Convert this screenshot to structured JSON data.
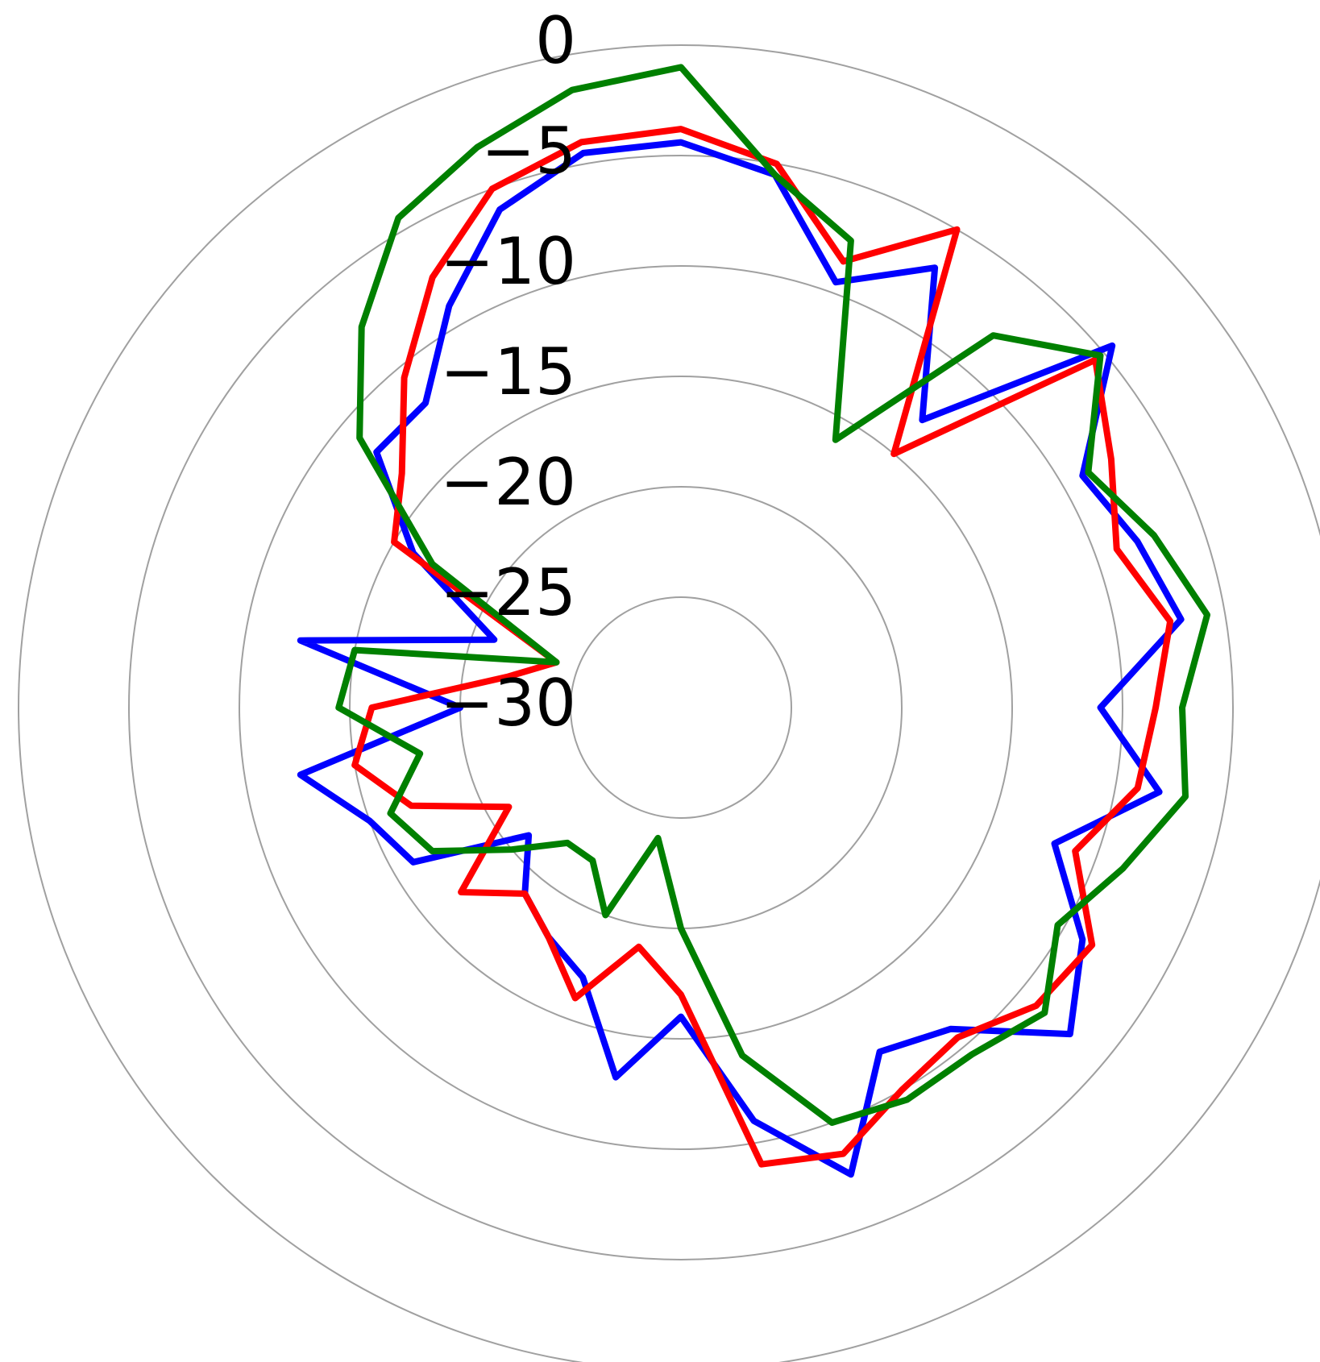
{
  "chart_data": {
    "type": "polar",
    "x": [
      0,
      10,
      20,
      30,
      40,
      50,
      60,
      70,
      80,
      90,
      100,
      110,
      120,
      130,
      140,
      150,
      160,
      170,
      180,
      190,
      200,
      210,
      220,
      230,
      240,
      250,
      260,
      270,
      280,
      290,
      300,
      310,
      320,
      330,
      340,
      350
    ],
    "ylim": [
      -30,
      0
    ],
    "yticks": [
      {
        "value": -30,
        "label": "−30"
      },
      {
        "value": -25,
        "label": "−25"
      },
      {
        "value": -20,
        "label": "−20"
      },
      {
        "value": -15,
        "label": "−15"
      },
      {
        "value": -10,
        "label": "−10"
      },
      {
        "value": -5,
        "label": "−5"
      },
      0
    ],
    "grid": true,
    "series": [
      {
        "color": "#0000ff",
        "values": [
          -4.4,
          -5.5,
          -9.5,
          -7,
          -13,
          -4.5,
          -9,
          -8,
          -7,
          -11,
          -8,
          -12,
          -9,
          -7,
          -11,
          -12,
          -7.5,
          -11,
          -16,
          -13,
          -17,
          -18,
          -19,
          -21,
          -16,
          -15,
          -12.5,
          -20,
          -12.5,
          -21,
          -16,
          -12,
          -12,
          -9,
          -6,
          -4.5
        ]
      },
      {
        "color": "#ff0000",
        "values": [
          -3.8,
          -5,
          -8.5,
          -5,
          -15,
          -5.5,
          -7.5,
          -9,
          -7.5,
          -8.5,
          -9,
          -11,
          -8.5,
          -9,
          -10.5,
          -10,
          -8.5,
          -9,
          -17,
          -19,
          -16,
          -18,
          -19,
          -17,
          -21,
          -17,
          -15,
          -16,
          -22,
          -24,
          -15,
          -13.5,
          -10.5,
          -7.5,
          -5,
          -4
        ]
      },
      {
        "color": "#008000",
        "values": [
          -1,
          -5.5,
          -7.5,
          -16,
          -8,
          -5.2,
          -8.7,
          -7.2,
          -5.8,
          -7.3,
          -6.8,
          -8.7,
          -10.3,
          -8.5,
          -9.5,
          -9.5,
          -10,
          -14,
          -20,
          -24,
          -20,
          -22,
          -22,
          -20,
          -17,
          -16,
          -18,
          -14.5,
          -15,
          -24,
          -17,
          -11,
          -7.5,
          -4.4,
          -3,
          -1.6
        ]
      }
    ]
  }
}
